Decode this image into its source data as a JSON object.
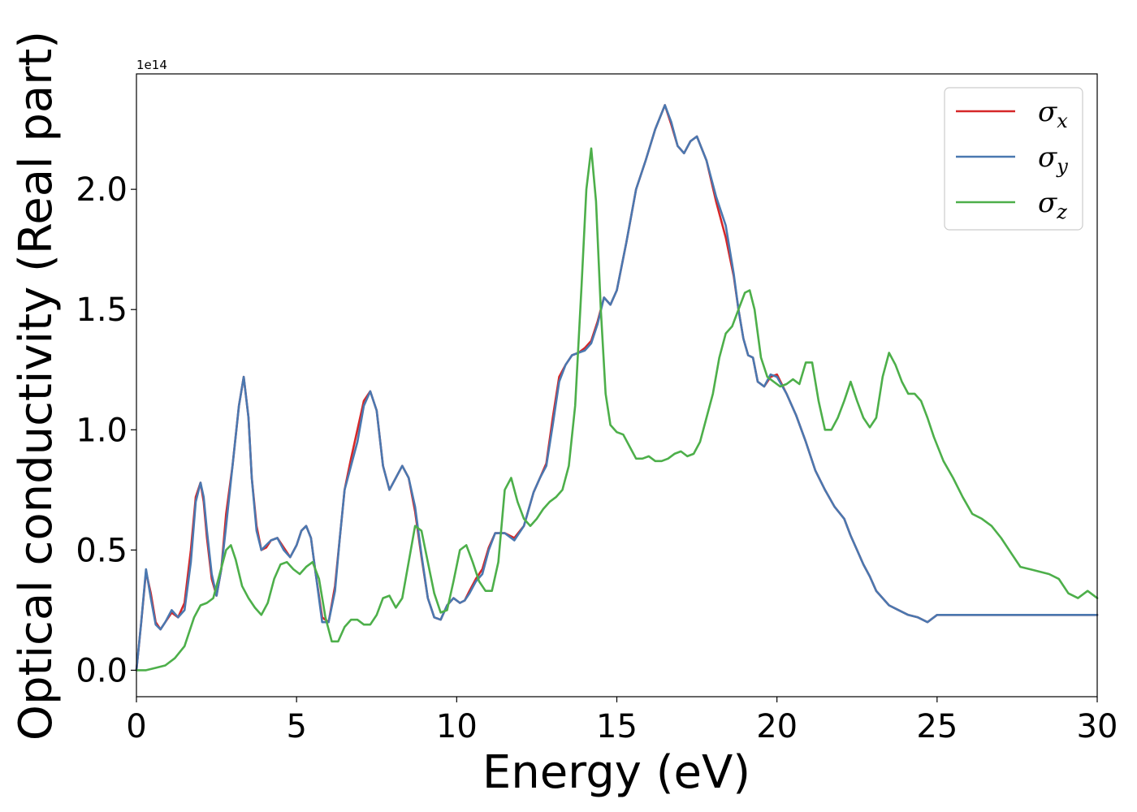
{
  "chart_data": {
    "type": "line",
    "xlabel": "Energy (eV)",
    "ylabel": "Optical conductivity (Real part)",
    "y_offset_label": "1e14",
    "xlim": [
      0,
      30
    ],
    "ylim": [
      -0.11,
      2.48
    ],
    "xticks": [
      0,
      5,
      10,
      15,
      20,
      25,
      30
    ],
    "xtick_labels": [
      "0",
      "5",
      "10",
      "15",
      "20",
      "25",
      "30"
    ],
    "yticks": [
      0.0,
      0.5,
      1.0,
      1.5,
      2.0
    ],
    "ytick_labels": [
      "0.0",
      "0.5",
      "1.0",
      "1.5",
      "2.0"
    ],
    "grid": false,
    "legend_position": "top-right",
    "series": [
      {
        "name": "σx",
        "legend_base": "σ",
        "legend_sub": "x",
        "color": "#d62728",
        "x": [
          0,
          0.15,
          0.3,
          0.45,
          0.6,
          0.75,
          0.9,
          1.1,
          1.3,
          1.5,
          1.7,
          1.85,
          2.0,
          2.1,
          2.2,
          2.35,
          2.5,
          2.65,
          2.8,
          3.0,
          3.2,
          3.35,
          3.5,
          3.6,
          3.75,
          3.9,
          4.05,
          4.2,
          4.4,
          4.6,
          4.8,
          5.0,
          5.15,
          5.3,
          5.45,
          5.6,
          5.8,
          6.0,
          6.2,
          6.35,
          6.5,
          6.7,
          6.9,
          7.1,
          7.3,
          7.5,
          7.7,
          7.9,
          8.1,
          8.3,
          8.5,
          8.7,
          8.9,
          9.1,
          9.3,
          9.5,
          9.7,
          9.9,
          10.1,
          10.25,
          10.4,
          10.6,
          10.8,
          11.0,
          11.2,
          11.5,
          11.8,
          12.1,
          12.4,
          12.6,
          12.8,
          13.0,
          13.2,
          13.4,
          13.6,
          13.8,
          14.0,
          14.2,
          14.4,
          14.6,
          14.8,
          15.0,
          15.3,
          15.6,
          15.9,
          16.2,
          16.5,
          16.7,
          16.9,
          17.1,
          17.3,
          17.5,
          17.8,
          18.1,
          18.4,
          18.65,
          18.8,
          18.95,
          19.1,
          19.25,
          19.4,
          19.6,
          19.8,
          20.0,
          20.3,
          20.6,
          20.9,
          21.2,
          21.5,
          21.8,
          22.1,
          22.3,
          22.5,
          22.7,
          22.9,
          23.1,
          23.3,
          23.5,
          23.8,
          24.1,
          24.4,
          24.7,
          25.0,
          25.3,
          25.6,
          25.9,
          26.2,
          26.5,
          26.8,
          27.1,
          27.4,
          27.7,
          28.0,
          28.3,
          28.6,
          28.9,
          29.2,
          29.5,
          29.8,
          30.0
        ],
        "y": [
          0.0,
          0.2,
          0.41,
          0.32,
          0.2,
          0.17,
          0.2,
          0.24,
          0.22,
          0.28,
          0.5,
          0.72,
          0.78,
          0.7,
          0.55,
          0.38,
          0.31,
          0.42,
          0.65,
          0.85,
          1.1,
          1.22,
          1.05,
          0.8,
          0.6,
          0.5,
          0.51,
          0.54,
          0.55,
          0.51,
          0.47,
          0.52,
          0.58,
          0.6,
          0.55,
          0.4,
          0.22,
          0.2,
          0.35,
          0.55,
          0.75,
          0.88,
          1.0,
          1.12,
          1.16,
          1.08,
          0.85,
          0.75,
          0.8,
          0.85,
          0.8,
          0.66,
          0.47,
          0.3,
          0.22,
          0.21,
          0.27,
          0.3,
          0.28,
          0.29,
          0.33,
          0.38,
          0.42,
          0.51,
          0.57,
          0.57,
          0.55,
          0.6,
          0.74,
          0.8,
          0.86,
          1.05,
          1.22,
          1.27,
          1.31,
          1.32,
          1.34,
          1.37,
          1.45,
          1.55,
          1.52,
          1.58,
          1.78,
          2.0,
          2.12,
          2.25,
          2.35,
          2.27,
          2.18,
          2.15,
          2.2,
          2.22,
          2.12,
          1.95,
          1.8,
          1.64,
          1.5,
          1.38,
          1.31,
          1.3,
          1.2,
          1.18,
          1.22,
          1.23,
          1.15,
          1.06,
          0.95,
          0.83,
          0.75,
          0.68,
          0.63,
          0.56,
          0.5,
          0.44,
          0.39,
          0.33,
          0.3,
          0.27,
          0.25,
          0.23,
          0.22,
          0.2,
          0.23,
          0.23,
          0.23,
          0.23,
          0.23,
          0.23,
          0.23,
          0.23,
          0.23,
          0.23,
          0.23,
          0.23,
          0.23,
          0.23,
          0.23,
          0.23,
          0.23,
          0.23
        ]
      },
      {
        "name": "σy",
        "legend_base": "σ",
        "legend_sub": "y",
        "color": "#4a78b0",
        "x": [
          0,
          0.15,
          0.3,
          0.45,
          0.6,
          0.75,
          0.9,
          1.1,
          1.3,
          1.5,
          1.7,
          1.85,
          2.0,
          2.1,
          2.2,
          2.35,
          2.5,
          2.65,
          2.8,
          3.0,
          3.2,
          3.35,
          3.5,
          3.6,
          3.75,
          3.9,
          4.05,
          4.2,
          4.4,
          4.6,
          4.8,
          5.0,
          5.15,
          5.3,
          5.45,
          5.6,
          5.8,
          6.0,
          6.2,
          6.35,
          6.5,
          6.7,
          6.9,
          7.1,
          7.3,
          7.5,
          7.7,
          7.9,
          8.1,
          8.3,
          8.5,
          8.7,
          8.9,
          9.1,
          9.3,
          9.5,
          9.7,
          9.9,
          10.1,
          10.25,
          10.4,
          10.6,
          10.8,
          11.0,
          11.2,
          11.5,
          11.8,
          12.1,
          12.4,
          12.6,
          12.8,
          13.0,
          13.2,
          13.4,
          13.6,
          13.8,
          14.0,
          14.2,
          14.4,
          14.6,
          14.8,
          15.0,
          15.3,
          15.6,
          15.9,
          16.2,
          16.5,
          16.7,
          16.9,
          17.1,
          17.3,
          17.5,
          17.8,
          18.1,
          18.4,
          18.65,
          18.8,
          18.95,
          19.1,
          19.25,
          19.4,
          19.6,
          19.8,
          20.0,
          20.3,
          20.6,
          20.9,
          21.2,
          21.5,
          21.8,
          22.1,
          22.3,
          22.5,
          22.7,
          22.9,
          23.1,
          23.3,
          23.5,
          23.8,
          24.1,
          24.4,
          24.7,
          25.0,
          25.3,
          25.6,
          25.9,
          26.2,
          26.5,
          26.8,
          27.1,
          27.4,
          27.7,
          28.0,
          28.3,
          28.6,
          28.9,
          29.2,
          29.5,
          29.8,
          30.0
        ],
        "y": [
          0.0,
          0.2,
          0.42,
          0.3,
          0.19,
          0.17,
          0.2,
          0.25,
          0.22,
          0.25,
          0.45,
          0.7,
          0.78,
          0.72,
          0.58,
          0.4,
          0.31,
          0.42,
          0.6,
          0.85,
          1.1,
          1.22,
          1.05,
          0.8,
          0.58,
          0.5,
          0.52,
          0.54,
          0.55,
          0.5,
          0.47,
          0.52,
          0.58,
          0.6,
          0.55,
          0.4,
          0.2,
          0.2,
          0.33,
          0.55,
          0.75,
          0.85,
          0.95,
          1.1,
          1.16,
          1.08,
          0.85,
          0.75,
          0.8,
          0.85,
          0.8,
          0.68,
          0.48,
          0.3,
          0.22,
          0.21,
          0.27,
          0.3,
          0.28,
          0.29,
          0.32,
          0.37,
          0.4,
          0.5,
          0.57,
          0.57,
          0.54,
          0.6,
          0.74,
          0.8,
          0.85,
          1.02,
          1.2,
          1.27,
          1.31,
          1.32,
          1.33,
          1.36,
          1.44,
          1.55,
          1.52,
          1.58,
          1.78,
          2.0,
          2.12,
          2.25,
          2.35,
          2.28,
          2.18,
          2.15,
          2.2,
          2.22,
          2.12,
          1.97,
          1.85,
          1.65,
          1.5,
          1.38,
          1.31,
          1.3,
          1.2,
          1.18,
          1.23,
          1.22,
          1.15,
          1.06,
          0.95,
          0.83,
          0.75,
          0.68,
          0.63,
          0.56,
          0.5,
          0.44,
          0.39,
          0.33,
          0.3,
          0.27,
          0.25,
          0.23,
          0.22,
          0.2,
          0.23,
          0.23,
          0.23,
          0.23,
          0.23,
          0.23,
          0.23,
          0.23,
          0.23,
          0.23,
          0.23,
          0.23,
          0.23,
          0.23,
          0.23,
          0.23,
          0.23,
          0.23
        ]
      },
      {
        "name": "σz",
        "legend_base": "σ",
        "legend_sub": "z",
        "color": "#4daf4a",
        "x": [
          0,
          0.3,
          0.6,
          0.9,
          1.2,
          1.5,
          1.8,
          2.0,
          2.2,
          2.4,
          2.6,
          2.8,
          2.95,
          3.1,
          3.3,
          3.5,
          3.7,
          3.9,
          4.1,
          4.3,
          4.5,
          4.7,
          4.9,
          5.1,
          5.3,
          5.5,
          5.7,
          5.9,
          6.1,
          6.3,
          6.5,
          6.7,
          6.9,
          7.1,
          7.3,
          7.5,
          7.7,
          7.9,
          8.1,
          8.3,
          8.5,
          8.7,
          8.9,
          9.1,
          9.3,
          9.5,
          9.7,
          9.9,
          10.1,
          10.3,
          10.5,
          10.7,
          10.9,
          11.1,
          11.3,
          11.5,
          11.7,
          11.9,
          12.1,
          12.3,
          12.5,
          12.7,
          12.9,
          13.1,
          13.3,
          13.5,
          13.7,
          13.9,
          14.05,
          14.2,
          14.35,
          14.5,
          14.65,
          14.8,
          15.0,
          15.2,
          15.4,
          15.6,
          15.8,
          16.0,
          16.2,
          16.4,
          16.6,
          16.8,
          17.0,
          17.2,
          17.4,
          17.6,
          17.8,
          18.0,
          18.2,
          18.4,
          18.6,
          18.8,
          19.0,
          19.15,
          19.3,
          19.5,
          19.7,
          19.9,
          20.1,
          20.3,
          20.5,
          20.7,
          20.9,
          21.1,
          21.3,
          21.5,
          21.7,
          21.9,
          22.1,
          22.3,
          22.5,
          22.7,
          22.9,
          23.1,
          23.3,
          23.5,
          23.7,
          23.9,
          24.1,
          24.3,
          24.5,
          24.7,
          24.9,
          25.2,
          25.5,
          25.8,
          26.1,
          26.4,
          26.7,
          27.0,
          27.3,
          27.6,
          27.9,
          28.2,
          28.5,
          28.8,
          29.1,
          29.4,
          29.7,
          30.0
        ],
        "y": [
          0.0,
          0.0,
          0.01,
          0.02,
          0.05,
          0.1,
          0.22,
          0.27,
          0.28,
          0.3,
          0.4,
          0.5,
          0.52,
          0.46,
          0.35,
          0.3,
          0.26,
          0.23,
          0.28,
          0.38,
          0.44,
          0.45,
          0.42,
          0.4,
          0.43,
          0.45,
          0.38,
          0.22,
          0.12,
          0.12,
          0.18,
          0.21,
          0.21,
          0.19,
          0.19,
          0.23,
          0.3,
          0.31,
          0.26,
          0.3,
          0.45,
          0.6,
          0.58,
          0.45,
          0.32,
          0.24,
          0.25,
          0.37,
          0.5,
          0.52,
          0.45,
          0.37,
          0.33,
          0.33,
          0.45,
          0.75,
          0.8,
          0.7,
          0.63,
          0.6,
          0.63,
          0.67,
          0.7,
          0.72,
          0.75,
          0.85,
          1.1,
          1.6,
          2.0,
          2.17,
          1.95,
          1.5,
          1.15,
          1.02,
          0.99,
          0.98,
          0.93,
          0.88,
          0.88,
          0.89,
          0.87,
          0.87,
          0.88,
          0.9,
          0.91,
          0.89,
          0.9,
          0.95,
          1.05,
          1.15,
          1.3,
          1.4,
          1.43,
          1.5,
          1.57,
          1.58,
          1.5,
          1.3,
          1.22,
          1.2,
          1.18,
          1.19,
          1.21,
          1.19,
          1.28,
          1.28,
          1.12,
          1.0,
          1.0,
          1.05,
          1.12,
          1.2,
          1.12,
          1.05,
          1.01,
          1.05,
          1.22,
          1.32,
          1.27,
          1.2,
          1.15,
          1.15,
          1.12,
          1.05,
          0.97,
          0.87,
          0.8,
          0.72,
          0.65,
          0.63,
          0.6,
          0.55,
          0.49,
          0.43,
          0.42,
          0.41,
          0.4,
          0.38,
          0.32,
          0.3,
          0.33,
          0.3
        ]
      }
    ]
  }
}
